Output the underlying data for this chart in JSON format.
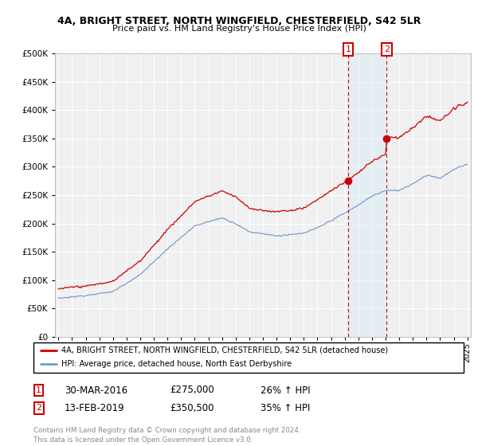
{
  "title": "4A, BRIGHT STREET, NORTH WINGFIELD, CHESTERFIELD, S42 5LR",
  "subtitle": "Price paid vs. HM Land Registry's House Price Index (HPI)",
  "red_label": "4A, BRIGHT STREET, NORTH WINGFIELD, CHESTERFIELD, S42 5LR (detached house)",
  "blue_label": "HPI: Average price, detached house, North East Derbyshire",
  "transaction1_date": "30-MAR-2016",
  "transaction1_price": 275000,
  "transaction1_pct": "26% ↑ HPI",
  "transaction2_date": "13-FEB-2019",
  "transaction2_price": 350500,
  "transaction2_pct": "35% ↑ HPI",
  "footer": "Contains HM Land Registry data © Crown copyright and database right 2024.\nThis data is licensed under the Open Government Licence v3.0.",
  "ylim": [
    0,
    500000
  ],
  "yticks": [
    0,
    50000,
    100000,
    150000,
    200000,
    250000,
    300000,
    350000,
    400000,
    450000,
    500000
  ],
  "xmin": 1994.75,
  "xmax": 2025.25,
  "marker1_x": 2016.25,
  "marker2_x": 2019.08,
  "red_color": "#cc0000",
  "blue_color": "#7799cc",
  "marker_color": "#cc0000",
  "vline_color": "#cc0000",
  "span_color": "#d0e8f8",
  "background_color": "#ffffff",
  "plot_bg_color": "#f0f0f0",
  "grid_color": "#ffffff"
}
